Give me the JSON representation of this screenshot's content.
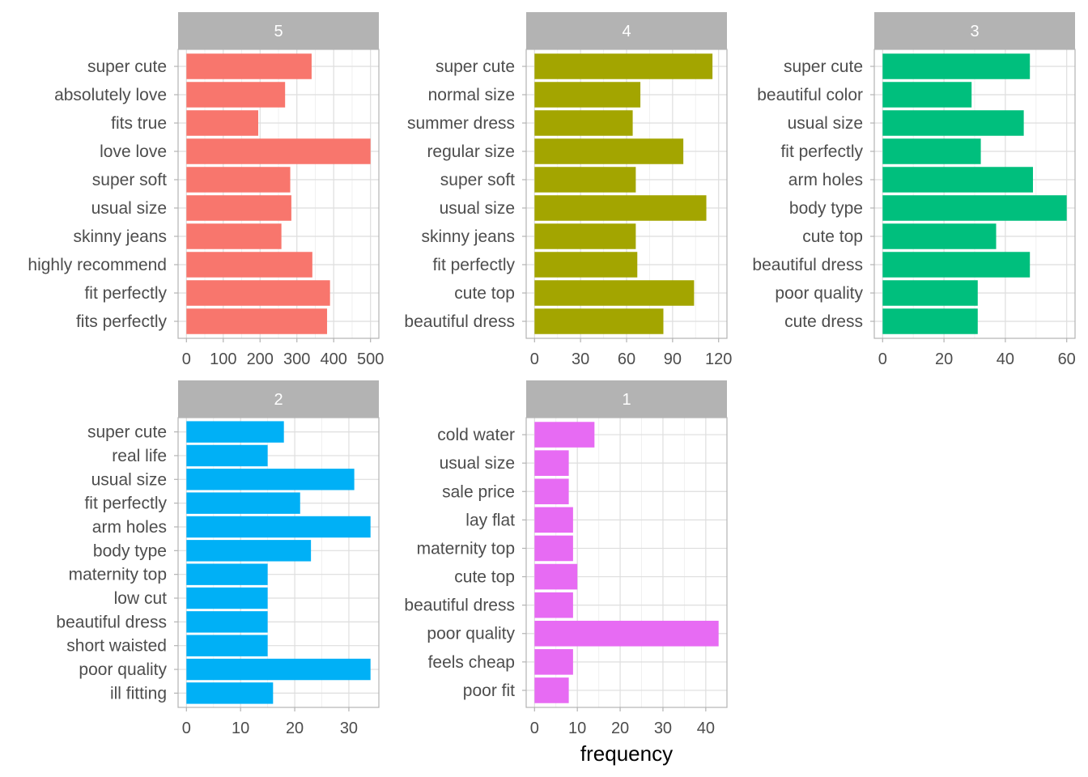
{
  "chart_data": {
    "type": "bar",
    "orientation": "horizontal",
    "xlabel": "frequency",
    "grid": true,
    "legend": "none",
    "panels": [
      {
        "title": "5",
        "color": "#F8766D",
        "xlim": [
          0,
          500
        ],
        "ticks": [
          "0",
          "100",
          "200",
          "300",
          "400",
          "500"
        ],
        "tick_values": [
          0,
          100,
          200,
          300,
          400,
          500
        ],
        "categories": [
          "super cute",
          "absolutely love",
          "fits true",
          "love love",
          "super soft",
          "usual size",
          "skinny jeans",
          "highly recommend",
          "fit perfectly",
          "fits perfectly"
        ],
        "values": [
          340,
          268,
          195,
          500,
          282,
          285,
          258,
          342,
          390,
          382
        ]
      },
      {
        "title": "4",
        "color": "#A3A500",
        "xlim": [
          0,
          120
        ],
        "ticks": [
          "0",
          "30",
          "60",
          "90",
          "120"
        ],
        "tick_values": [
          0,
          30,
          60,
          90,
          120
        ],
        "categories": [
          "super cute",
          "normal size",
          "summer dress",
          "regular size",
          "super soft",
          "usual size",
          "skinny jeans",
          "fit perfectly",
          "cute top",
          "beautiful dress"
        ],
        "values": [
          116,
          69,
          64,
          97,
          66,
          112,
          66,
          67,
          104,
          84
        ]
      },
      {
        "title": "3",
        "color": "#00BF7D",
        "xlim": [
          0,
          60
        ],
        "ticks": [
          "0",
          "20",
          "40",
          "60"
        ],
        "tick_values": [
          0,
          20,
          40,
          60
        ],
        "categories": [
          "super cute",
          "beautiful color",
          "usual size",
          "fit perfectly",
          "arm holes",
          "body type",
          "cute top",
          "beautiful dress",
          "poor quality",
          "cute dress"
        ],
        "values": [
          48,
          29,
          46,
          32,
          49,
          60,
          37,
          48,
          31,
          31
        ]
      },
      {
        "title": "2",
        "color": "#00B0F6",
        "xlim": [
          0,
          34
        ],
        "ticks": [
          "0",
          "10",
          "20",
          "30"
        ],
        "tick_values": [
          0,
          10,
          20,
          30
        ],
        "categories": [
          "super cute",
          "real life",
          "usual size",
          "fit perfectly",
          "arm holes",
          "body type",
          "maternity top",
          "low cut",
          "beautiful dress",
          "short waisted",
          "poor quality",
          "ill fitting"
        ],
        "values": [
          18,
          15,
          31,
          21,
          34,
          23,
          15,
          15,
          15,
          15,
          34,
          16
        ]
      },
      {
        "title": "1",
        "color": "#E76BF3",
        "xlim": [
          0,
          43
        ],
        "ticks": [
          "0",
          "10",
          "20",
          "30",
          "40"
        ],
        "tick_values": [
          0,
          10,
          20,
          30,
          40
        ],
        "categories": [
          "cold water",
          "usual size",
          "sale price",
          "lay flat",
          "maternity top",
          "cute top",
          "beautiful dress",
          "poor quality",
          "feels cheap",
          "poor fit"
        ],
        "values": [
          14,
          8,
          8,
          9,
          9,
          10,
          9,
          43,
          9,
          8
        ]
      }
    ]
  }
}
